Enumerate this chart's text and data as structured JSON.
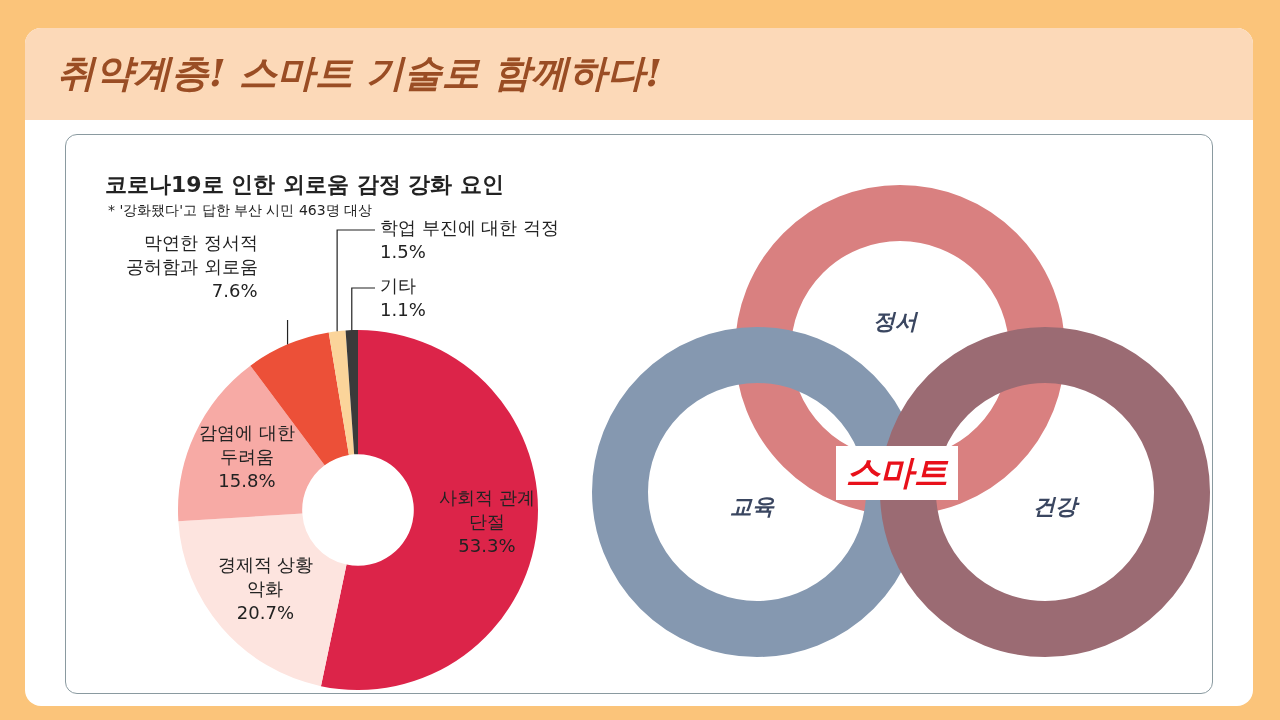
{
  "chart_data": [
    {
      "type": "other",
      "title": "취약계층! 스마트 기술로 함께하다!"
    },
    {
      "type": "donut",
      "title": "코로나19로 인한 외로움 감정 강화 요인",
      "subtitle": "* '강화됐다'고 답한 부산 시민 463명 대상",
      "categories": [
        "사회적 관계 단절",
        "경제적 상황 악화",
        "감염에 대한 두려움",
        "막연한 정서적 공허함과 외로움",
        "학업 부진에 대한 걱정",
        "기타"
      ],
      "values": [
        53.3,
        20.7,
        15.8,
        7.6,
        1.5,
        1.1
      ],
      "colors": [
        "#dc2449",
        "#fde4df",
        "#f7aaa5",
        "#ec5038",
        "#fbd49a",
        "#3a3a3a"
      ],
      "value_labels": [
        "53.3%",
        "20.7%",
        "15.8%",
        "7.6%",
        "1.5%",
        "1.1%"
      ],
      "legend": false
    },
    {
      "type": "other",
      "annotations": [
        "정서",
        "교육",
        "건강",
        "스마트"
      ]
    }
  ]
}
